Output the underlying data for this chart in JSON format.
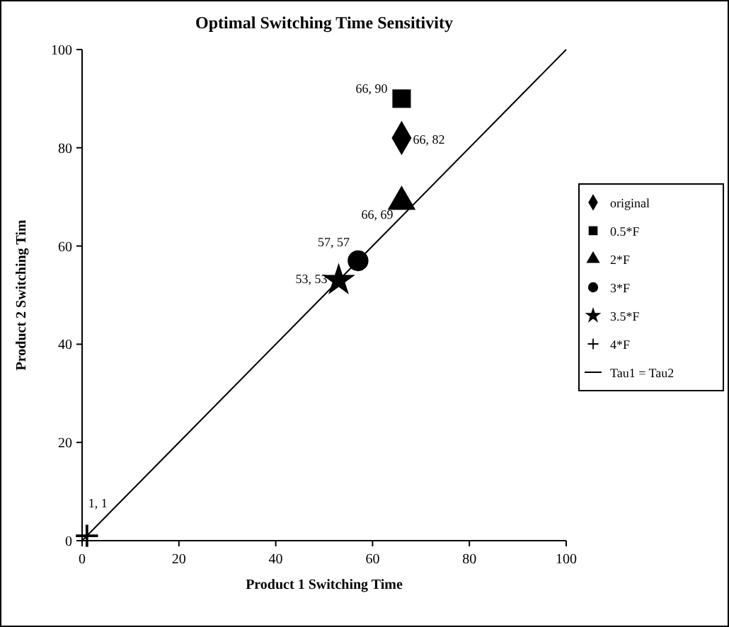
{
  "chart_data": {
    "type": "scatter",
    "title": "Optimal Switching Time Sensitivity",
    "xlabel": "Product 1 Switching Time",
    "ylabel": "Product 2 Switching Tim",
    "xlim": [
      0,
      100
    ],
    "ylim": [
      0,
      100
    ],
    "xticks": [
      0,
      20,
      40,
      60,
      80,
      100
    ],
    "yticks": [
      0,
      20,
      40,
      60,
      80,
      100
    ],
    "grid": false,
    "legend": "right",
    "series": [
      {
        "name": "original",
        "color": "#000000",
        "marker": "diamond",
        "x": [
          66
        ],
        "values": [
          82
        ],
        "value_labels": [
          "66, 82"
        ]
      },
      {
        "name": "0.5*F",
        "color": "#000000",
        "marker": "square",
        "x": [
          66
        ],
        "values": [
          90
        ],
        "value_labels": [
          "66, 90"
        ]
      },
      {
        "name": "2*F",
        "color": "#000000",
        "marker": "triangle",
        "x": [
          66
        ],
        "values": [
          69
        ],
        "value_labels": [
          "66, 69"
        ]
      },
      {
        "name": "3*F",
        "color": "#000000",
        "marker": "circle",
        "x": [
          57
        ],
        "values": [
          57
        ],
        "value_labels": [
          "57, 57"
        ]
      },
      {
        "name": "3.5*F",
        "color": "#000000",
        "marker": "star",
        "x": [
          53
        ],
        "values": [
          53
        ],
        "value_labels": [
          "53, 53"
        ]
      },
      {
        "name": "4*F",
        "color": "#000000",
        "marker": "cross",
        "x": [
          1
        ],
        "values": [
          1
        ],
        "value_labels": [
          "1, 1"
        ]
      },
      {
        "name": "Tau1 = Tau2",
        "type": "line",
        "color": "#000000",
        "marker": "none",
        "line_style": "solid",
        "x": [
          0,
          100
        ],
        "values": [
          0,
          100
        ]
      }
    ]
  }
}
